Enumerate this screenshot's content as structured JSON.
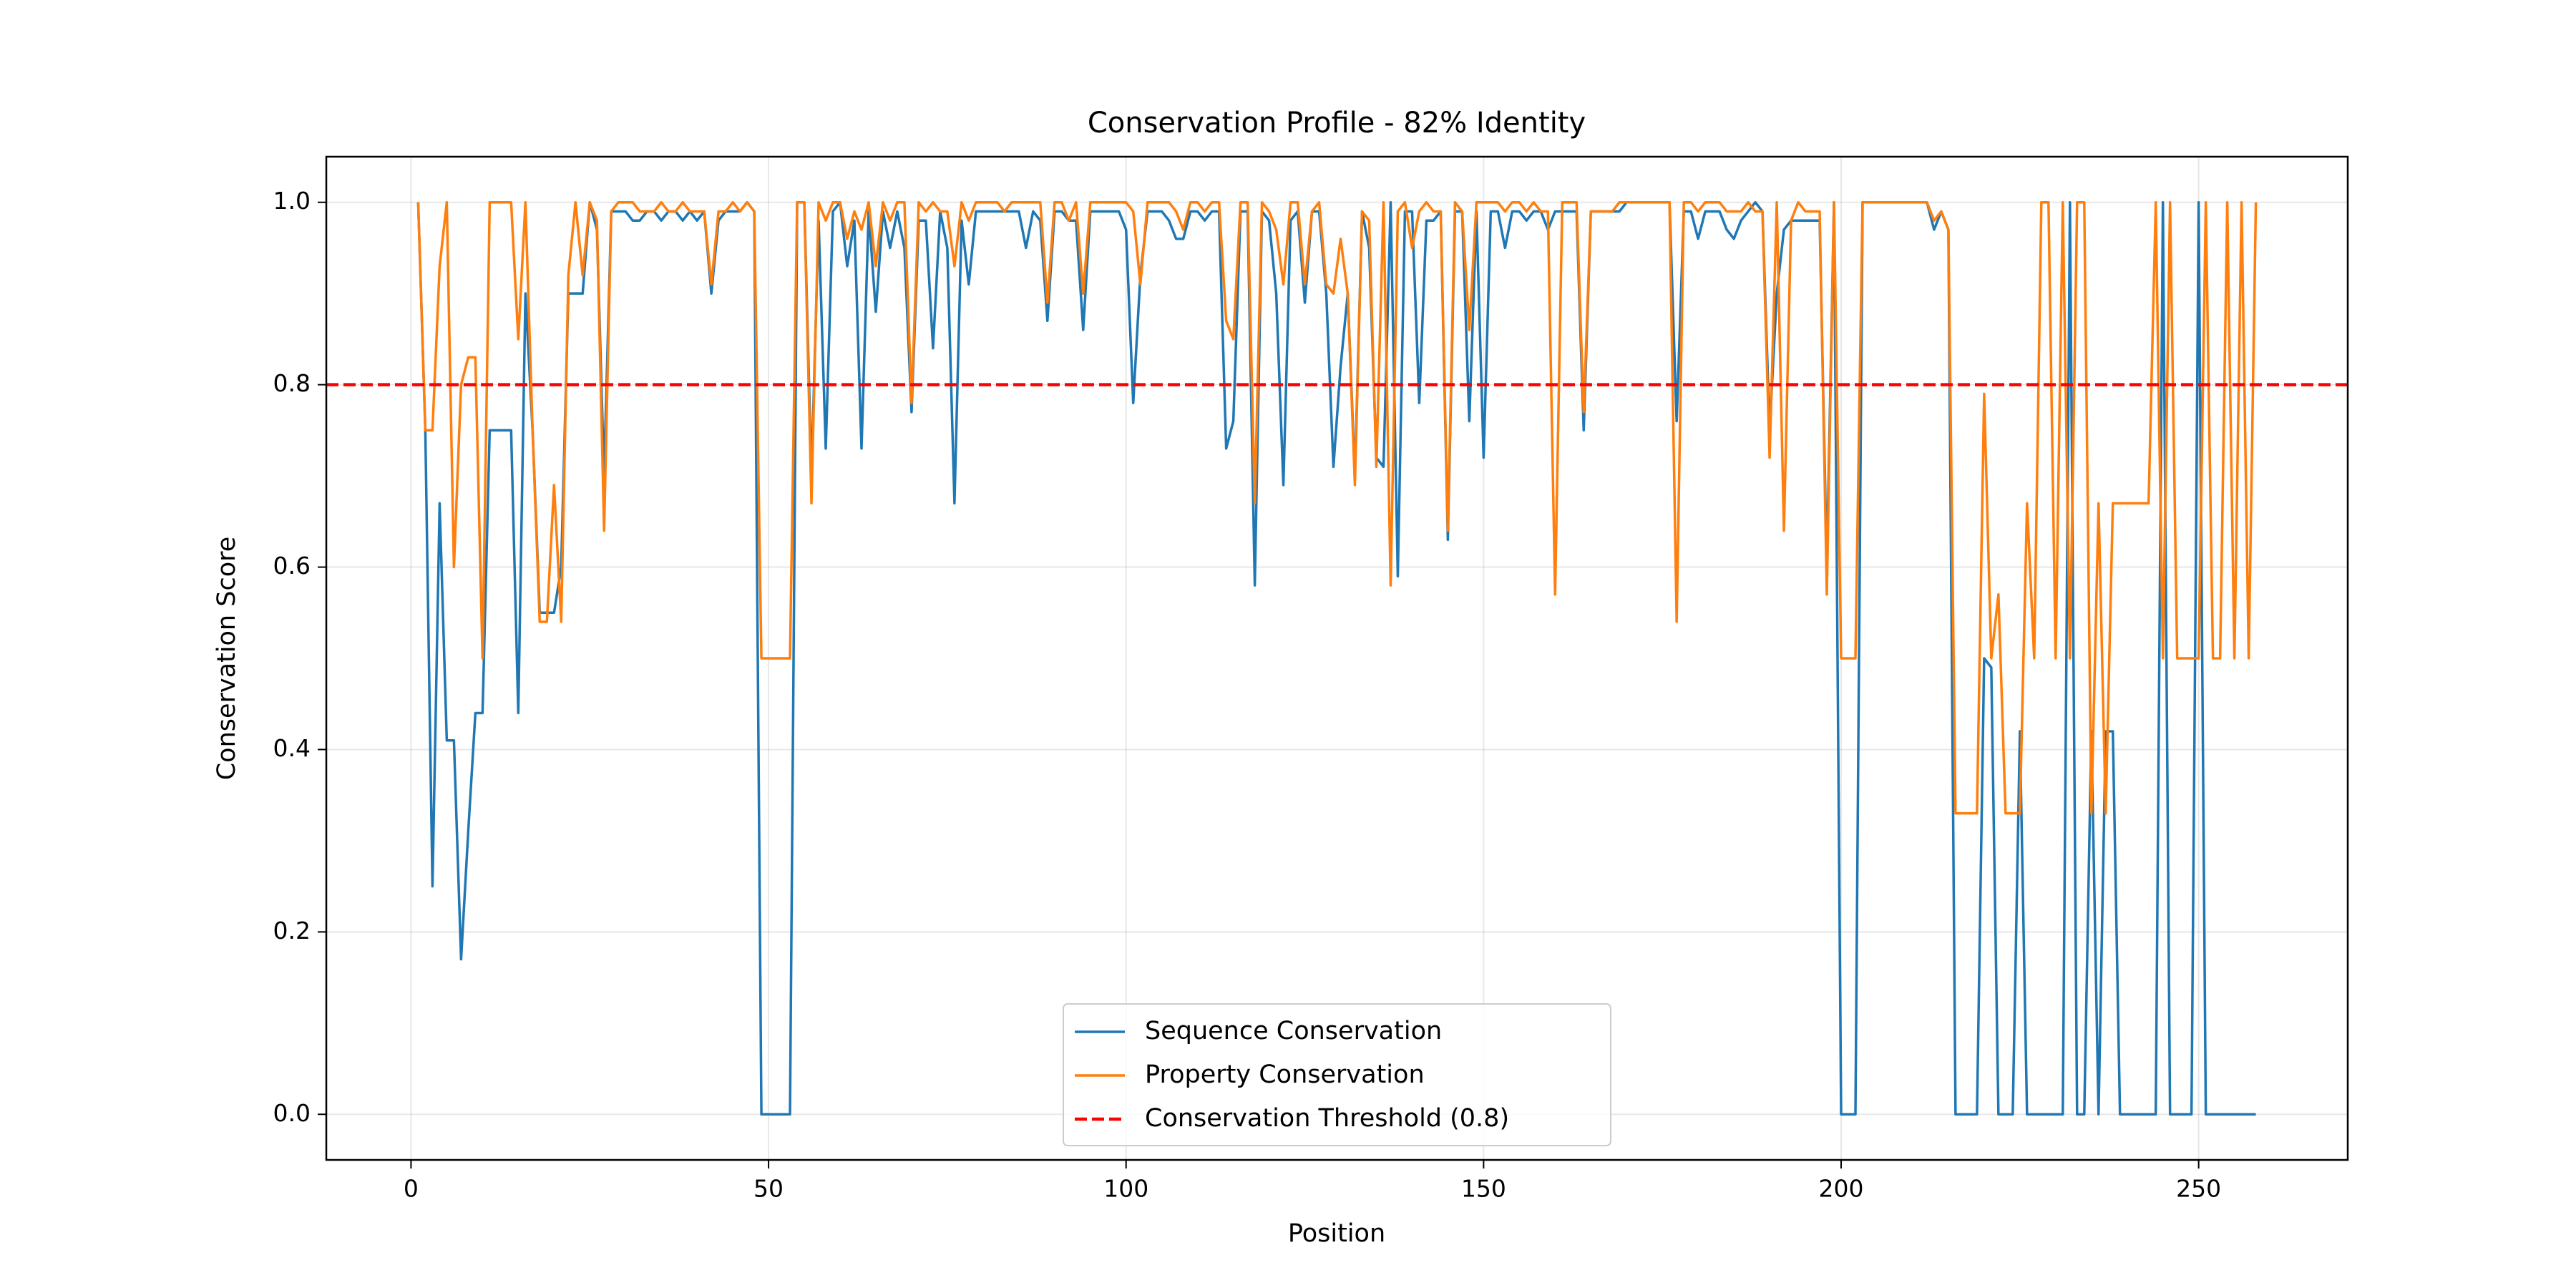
{
  "chart_data": {
    "type": "line",
    "title": "Conservation Profile - 82% Identity",
    "x_label": "Position",
    "y_label": "Conservation Score",
    "x": [
      1,
      2,
      3,
      4,
      5,
      6,
      7,
      8,
      9,
      10,
      11,
      12,
      13,
      14,
      15,
      16,
      17,
      18,
      19,
      20,
      21,
      22,
      23,
      24,
      25,
      26,
      27,
      28,
      29,
      30,
      31,
      32,
      33,
      34,
      35,
      36,
      37,
      38,
      39,
      40,
      41,
      42,
      43,
      44,
      45,
      46,
      47,
      48,
      49,
      50,
      51,
      52,
      53,
      54,
      55,
      56,
      57,
      58,
      59,
      60,
      61,
      62,
      63,
      64,
      65,
      66,
      67,
      68,
      69,
      70,
      71,
      72,
      73,
      74,
      75,
      76,
      77,
      78,
      79,
      80,
      81,
      82,
      83,
      84,
      85,
      86,
      87,
      88,
      89,
      90,
      91,
      92,
      93,
      94,
      95,
      96,
      97,
      98,
      99,
      100,
      101,
      102,
      103,
      104,
      105,
      106,
      107,
      108,
      109,
      110,
      111,
      112,
      113,
      114,
      115,
      116,
      117,
      118,
      119,
      120,
      121,
      122,
      123,
      124,
      125,
      126,
      127,
      128,
      129,
      130,
      131,
      132,
      133,
      134,
      135,
      136,
      137,
      138,
      139,
      140,
      141,
      142,
      143,
      144,
      145,
      146,
      147,
      148,
      149,
      150,
      151,
      152,
      153,
      154,
      155,
      156,
      157,
      158,
      159,
      160,
      161,
      162,
      163,
      164,
      165,
      166,
      167,
      168,
      169,
      170,
      171,
      172,
      173,
      174,
      175,
      176,
      177,
      178,
      179,
      180,
      181,
      182,
      183,
      184,
      185,
      186,
      187,
      188,
      189,
      190,
      191,
      192,
      193,
      194,
      195,
      196,
      197,
      198,
      199,
      200,
      201,
      202,
      203,
      204,
      205,
      206,
      207,
      208,
      209,
      210,
      211,
      212,
      213,
      214,
      215,
      216,
      217,
      218,
      219,
      220,
      221,
      222,
      223,
      224,
      225,
      226,
      227,
      228,
      229,
      230,
      231,
      232,
      233,
      234,
      235,
      236,
      237,
      238,
      239,
      240,
      241,
      242,
      243,
      244,
      245,
      246,
      247,
      248,
      249,
      250,
      251,
      252,
      253,
      254,
      255,
      256,
      257,
      258
    ],
    "series": [
      {
        "name": "Sequence Conservation",
        "color": "#1f77b4",
        "values": [
          1.0,
          0.75,
          0.25,
          0.67,
          0.41,
          0.41,
          0.17,
          0.31,
          0.44,
          0.44,
          0.75,
          0.75,
          0.75,
          0.75,
          0.44,
          0.9,
          0.75,
          0.55,
          0.55,
          0.55,
          0.6,
          0.9,
          0.9,
          0.9,
          1.0,
          0.97,
          0.7,
          0.99,
          0.99,
          0.99,
          0.98,
          0.98,
          0.99,
          0.99,
          0.98,
          0.99,
          0.99,
          0.98,
          0.99,
          0.98,
          0.99,
          0.9,
          0.98,
          0.99,
          0.99,
          0.99,
          1.0,
          0.99,
          0,
          0,
          0,
          0,
          0,
          1.0,
          1.0,
          0.7,
          0.98,
          0.73,
          0.99,
          1.0,
          0.93,
          0.98,
          0.73,
          0.99,
          0.88,
          0.99,
          0.95,
          0.99,
          0.95,
          0.77,
          0.98,
          0.98,
          0.84,
          0.99,
          0.95,
          0.67,
          0.98,
          0.91,
          0.99,
          0.99,
          0.99,
          0.99,
          0.99,
          0.99,
          0.99,
          0.95,
          0.99,
          0.98,
          0.87,
          0.99,
          0.99,
          0.98,
          0.98,
          0.86,
          0.99,
          0.99,
          0.99,
          0.99,
          0.99,
          0.97,
          0.78,
          0.92,
          0.99,
          0.99,
          0.99,
          0.98,
          0.96,
          0.96,
          0.99,
          0.99,
          0.98,
          0.99,
          0.99,
          0.73,
          0.76,
          0.99,
          0.99,
          0.58,
          0.99,
          0.98,
          0.9,
          0.69,
          0.98,
          0.99,
          0.89,
          0.99,
          0.99,
          0.9,
          0.71,
          0.82,
          0.9,
          0.7,
          0.99,
          0.95,
          0.72,
          0.71,
          1.0,
          0.59,
          0.99,
          0.99,
          0.78,
          0.98,
          0.98,
          0.99,
          0.63,
          0.99,
          0.99,
          0.76,
          0.99,
          0.72,
          0.99,
          0.99,
          0.95,
          0.99,
          0.99,
          0.98,
          0.99,
          0.99,
          0.97,
          0.99,
          0.99,
          0.99,
          0.99,
          0.75,
          0.99,
          0.99,
          0.99,
          0.99,
          0.99,
          1.0,
          1.0,
          1.0,
          1.0,
          1.0,
          1.0,
          1.0,
          0.76,
          0.99,
          0.99,
          0.96,
          0.99,
          0.99,
          0.99,
          0.97,
          0.96,
          0.98,
          0.99,
          1.0,
          0.99,
          0.75,
          0.9,
          0.97,
          0.98,
          0.98,
          0.98,
          0.98,
          0.98,
          0.6,
          1.0,
          0,
          0,
          0,
          1.0,
          1.0,
          1.0,
          1.0,
          1.0,
          1.0,
          1.0,
          1.0,
          1.0,
          1.0,
          0.97,
          0.99,
          0.97,
          0,
          0,
          0,
          0,
          0.5,
          0.49,
          0,
          0,
          0,
          0.42,
          0,
          0,
          0,
          0,
          0,
          0,
          1.0,
          0,
          0,
          0.42,
          0,
          0.42,
          0.42,
          0,
          0,
          0,
          0,
          0,
          0,
          1.0,
          0,
          0,
          0,
          0,
          1.0,
          0,
          0,
          0,
          0,
          0,
          0,
          0,
          0
        ]
      },
      {
        "name": "Property Conservation",
        "color": "#ff7f0e",
        "values": [
          1.0,
          0.75,
          0.75,
          0.93,
          1.0,
          0.6,
          0.8,
          0.83,
          0.83,
          0.5,
          1.0,
          1.0,
          1.0,
          1.0,
          0.85,
          1.0,
          0.75,
          0.54,
          0.54,
          0.69,
          0.54,
          0.92,
          1.0,
          0.92,
          1.0,
          0.98,
          0.64,
          0.99,
          1.0,
          1.0,
          1.0,
          0.99,
          0.99,
          0.99,
          1.0,
          0.99,
          0.99,
          1.0,
          0.99,
          0.99,
          0.99,
          0.91,
          0.99,
          0.99,
          1.0,
          0.99,
          1.0,
          0.99,
          0.5,
          0.5,
          0.5,
          0.5,
          0.5,
          1.0,
          1.0,
          0.67,
          1.0,
          0.98,
          1.0,
          1.0,
          0.96,
          0.99,
          0.97,
          1.0,
          0.93,
          1.0,
          0.98,
          1.0,
          1.0,
          0.78,
          1.0,
          0.99,
          1.0,
          0.99,
          0.99,
          0.93,
          1.0,
          0.98,
          1.0,
          1.0,
          1.0,
          1.0,
          0.99,
          1.0,
          1.0,
          1.0,
          1.0,
          1.0,
          0.89,
          1.0,
          1.0,
          0.98,
          1.0,
          0.9,
          1.0,
          1.0,
          1.0,
          1.0,
          1.0,
          1.0,
          0.99,
          0.91,
          1.0,
          1.0,
          1.0,
          1.0,
          0.99,
          0.97,
          1.0,
          1.0,
          0.99,
          1.0,
          1.0,
          0.87,
          0.85,
          1.0,
          1.0,
          0.67,
          1.0,
          0.99,
          0.97,
          0.91,
          1.0,
          1.0,
          0.91,
          0.99,
          1.0,
          0.91,
          0.9,
          0.96,
          0.9,
          0.69,
          0.99,
          0.98,
          0.71,
          1.0,
          0.58,
          0.99,
          1.0,
          0.95,
          0.99,
          1.0,
          0.99,
          0.99,
          0.64,
          1.0,
          0.99,
          0.86,
          1.0,
          1.0,
          1.0,
          1.0,
          0.99,
          1.0,
          1.0,
          0.99,
          1.0,
          0.99,
          0.99,
          0.57,
          1.0,
          1.0,
          1.0,
          0.77,
          0.99,
          0.99,
          0.99,
          0.99,
          1.0,
          1.0,
          1.0,
          1.0,
          1.0,
          1.0,
          1.0,
          1.0,
          0.54,
          1.0,
          1.0,
          0.99,
          1.0,
          1.0,
          1.0,
          0.99,
          0.99,
          0.99,
          1.0,
          0.99,
          0.99,
          0.72,
          1.0,
          0.64,
          0.98,
          1.0,
          0.99,
          0.99,
          0.99,
          0.57,
          1.0,
          0.5,
          0.5,
          0.5,
          1.0,
          1.0,
          1.0,
          1.0,
          1.0,
          1.0,
          1.0,
          1.0,
          1.0,
          1.0,
          0.98,
          0.99,
          0.97,
          0.33,
          0.33,
          0.33,
          0.33,
          0.79,
          0.5,
          0.57,
          0.33,
          0.33,
          0.33,
          0.67,
          0.5,
          1.0,
          1.0,
          0.5,
          1.0,
          0.5,
          1.0,
          1.0,
          0.33,
          0.67,
          0.33,
          0.67,
          0.67,
          0.67,
          0.67,
          0.67,
          0.67,
          1.0,
          0.5,
          1.0,
          0.5,
          0.5,
          0.5,
          0.5,
          1.0,
          0.5,
          0.5,
          1.0,
          0.5,
          1.0,
          0.5,
          1.0
        ]
      }
    ],
    "threshold": {
      "name": "Conservation Threshold (0.8)",
      "value": 0.8,
      "color": "#ff0000"
    },
    "xlim": [
      -11.85,
      270.85
    ],
    "ylim": [
      -0.05,
      1.05
    ],
    "xticks": [
      0,
      50,
      100,
      150,
      200,
      250
    ],
    "yticks": [
      {
        "value": 0,
        "label": "0.0"
      },
      0.2,
      0.4,
      0.6,
      0.8,
      {
        "value": 1,
        "label": "1.0"
      }
    ],
    "grid": true,
    "legend": "lower center"
  }
}
